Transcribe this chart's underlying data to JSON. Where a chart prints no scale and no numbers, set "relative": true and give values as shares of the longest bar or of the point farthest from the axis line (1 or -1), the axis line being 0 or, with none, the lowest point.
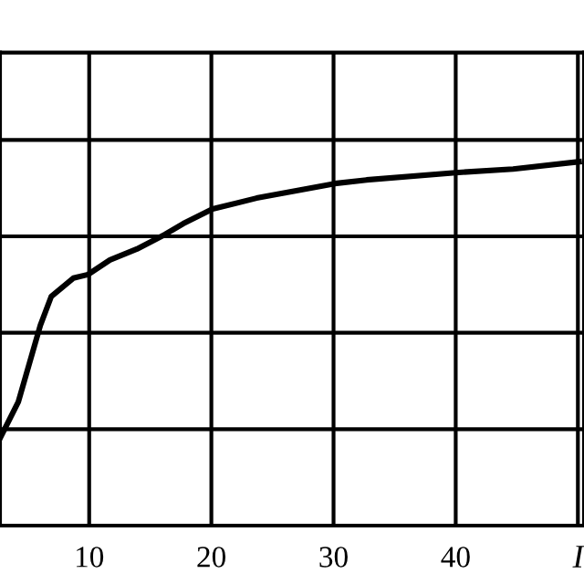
{
  "chart_data": {
    "type": "line",
    "relative": true,
    "xlabel": "I",
    "x": [
      2.7,
      4.2,
      6.0,
      6.9,
      8.7,
      9.9,
      11.7,
      13.9,
      16.2,
      17.7,
      20.1,
      23.7,
      30.1,
      32.7,
      40.0,
      44.7,
      50.1
    ],
    "series": [
      {
        "color": "#000000",
        "values": [
          0.24,
          0.34,
          0.55,
          0.63,
          0.68,
          0.69,
          0.73,
          0.76,
          0.8,
          0.83,
          0.87,
          0.9,
          0.94,
          0.95,
          0.97,
          0.98,
          1
        ]
      }
    ],
    "xlim": [
      2.7,
      50.5
    ],
    "xticks": [
      10,
      20,
      30,
      40,
      {
        "value": 50,
        "label": null
      }
    ],
    "grid": true,
    "marker": "none",
    "line_style": "solid"
  }
}
